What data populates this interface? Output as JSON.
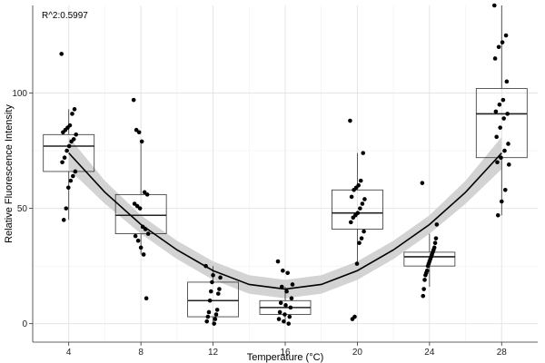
{
  "chart_data": {
    "type": "box",
    "title": "",
    "xlabel": "Temperature (°C)",
    "ylabel": "Relative Fluorescence Intensity",
    "annotation": "R^2:0.5997",
    "grid": true,
    "xlim": [
      2,
      30
    ],
    "ylim": [
      -8,
      138
    ],
    "x_ticks": [
      4,
      8,
      12,
      16,
      20,
      24,
      28
    ],
    "y_ticks": [
      0,
      50,
      100
    ],
    "categories": [
      "4",
      "8",
      "12",
      "16",
      "20",
      "24",
      "28"
    ],
    "boxes": [
      {
        "x": 4,
        "lower": 45,
        "q1": 66,
        "median": 77,
        "q3": 82,
        "upper": 93
      },
      {
        "x": 8,
        "lower": 30,
        "q1": 39,
        "median": 47,
        "q3": 56,
        "upper": 79
      },
      {
        "x": 12,
        "lower": 0,
        "q1": 3,
        "median": 10,
        "q3": 18,
        "upper": 25
      },
      {
        "x": 16,
        "lower": 0,
        "q1": 4,
        "median": 7,
        "q3": 10,
        "upper": 16
      },
      {
        "x": 20,
        "lower": 26,
        "q1": 41,
        "median": 48,
        "q3": 58,
        "upper": 74
      },
      {
        "x": 24,
        "lower": 16,
        "q1": 25,
        "median": 29,
        "q3": 31,
        "upper": 39
      },
      {
        "x": 28,
        "lower": 47,
        "q1": 72,
        "median": 91,
        "q3": 102,
        "upper": 138
      }
    ],
    "points": [
      {
        "x": 4,
        "values": [
          117,
          93,
          91,
          86,
          85,
          84,
          83,
          82,
          80,
          79,
          77,
          75,
          72,
          70,
          66,
          64,
          62,
          59,
          50,
          45
        ]
      },
      {
        "x": 8,
        "values": [
          97,
          84,
          83,
          79,
          57,
          56,
          52,
          51,
          50,
          42,
          41,
          39,
          38,
          36,
          33,
          30,
          11
        ]
      },
      {
        "x": 12,
        "values": [
          25,
          21,
          20,
          18,
          15,
          14,
          13,
          10,
          6,
          5,
          4,
          3,
          2,
          1,
          0
        ]
      },
      {
        "x": 16,
        "values": [
          27,
          23,
          22,
          17,
          16,
          14,
          11,
          9,
          8,
          7,
          5,
          4,
          3,
          2,
          1,
          0
        ]
      },
      {
        "x": 20,
        "values": [
          88,
          74,
          62,
          60,
          59,
          58,
          55,
          54,
          52,
          50,
          48,
          47,
          46,
          44,
          40,
          37,
          35,
          26,
          3,
          2
        ]
      },
      {
        "x": 24,
        "values": [
          61,
          43,
          37,
          35,
          33,
          32,
          31,
          30,
          29,
          28,
          27,
          26,
          25,
          23,
          22,
          21,
          19,
          15,
          12
        ]
      },
      {
        "x": 28,
        "values": [
          138,
          125,
          122,
          120,
          115,
          105,
          97,
          95,
          92,
          91,
          89,
          85,
          81,
          78,
          75,
          72,
          70,
          69,
          58,
          53,
          47
        ]
      }
    ],
    "fit": {
      "type": "quadratic",
      "x": [
        4,
        6,
        8,
        10,
        12,
        14,
        16,
        18,
        20,
        22,
        24,
        26,
        28
      ],
      "y": [
        74,
        57,
        43,
        32,
        23,
        17,
        15,
        17,
        23,
        32,
        43,
        57,
        74
      ],
      "band_halfwidth": [
        7,
        5,
        4,
        4,
        4,
        4,
        4,
        4,
        4,
        4,
        4,
        5,
        7
      ],
      "color": "#000000",
      "band_color": "#d3d3d3"
    }
  }
}
